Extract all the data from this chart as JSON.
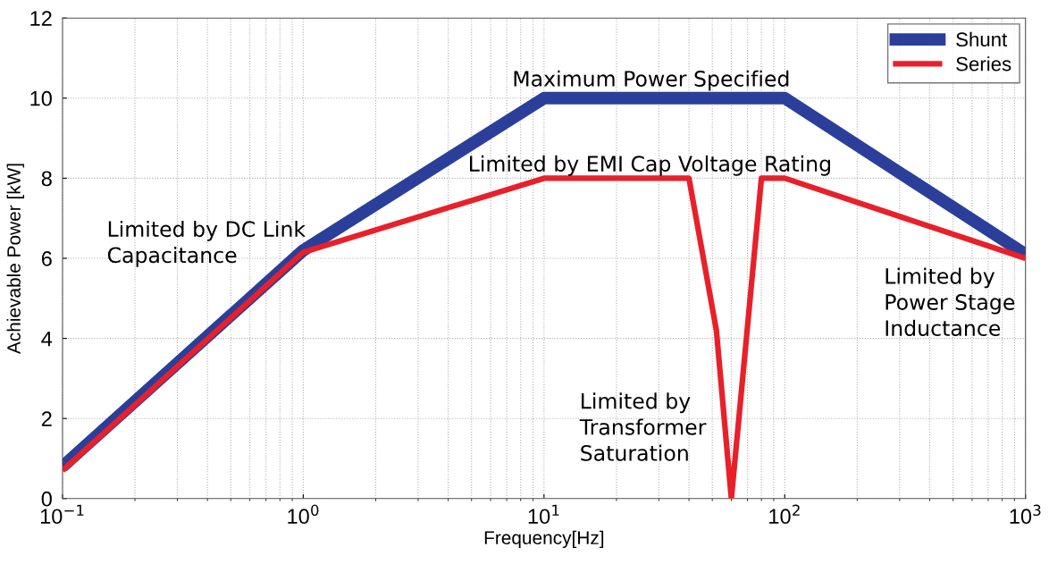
{
  "chart_data": {
    "type": "line",
    "xlabel": "Frequency[Hz]",
    "ylabel": "Achievable Power [kW]",
    "log": "x",
    "grid": true,
    "legend": "top right",
    "marker": "none",
    "line_style": "solid",
    "xlim": [
      0.1,
      1000
    ],
    "xticks": [
      {
        "value": 0.1,
        "label": "10$^{−1}$"
      },
      {
        "value": 1,
        "label": "10$^{0}$"
      },
      {
        "value": 10,
        "label": "10$^{1}$"
      },
      {
        "value": 100,
        "label": "10$^{2}$"
      },
      {
        "value": 1000,
        "label": "10$^{3}$"
      }
    ],
    "ylim": [
      0,
      12
    ],
    "yticks": [
      0,
      2,
      4,
      6,
      8,
      10,
      12
    ],
    "series": [
      {
        "name": "Shunt",
        "color": "#2b3f9a",
        "x": [
          0.1,
          1,
          10,
          100,
          1000
        ],
        "values": [
          0.8,
          6.2,
          10,
          10,
          6.1
        ]
      },
      {
        "name": "Series",
        "color": "#e8202a",
        "x": [
          0.1,
          1,
          10,
          40,
          52,
          60,
          80,
          100,
          1000
        ],
        "values": [
          0.7,
          6.15,
          8,
          8,
          4.2,
          0,
          8,
          8,
          6.0
        ]
      }
    ],
    "annotations": [
      "Limited by DC Link\nCapacitance",
      "Maximum Power Specified",
      "Limited by EMI Cap Voltage Rating",
      "Limited by\nTransformer\nSaturation",
      "Limited by\nPower Stage\nInductance"
    ]
  }
}
